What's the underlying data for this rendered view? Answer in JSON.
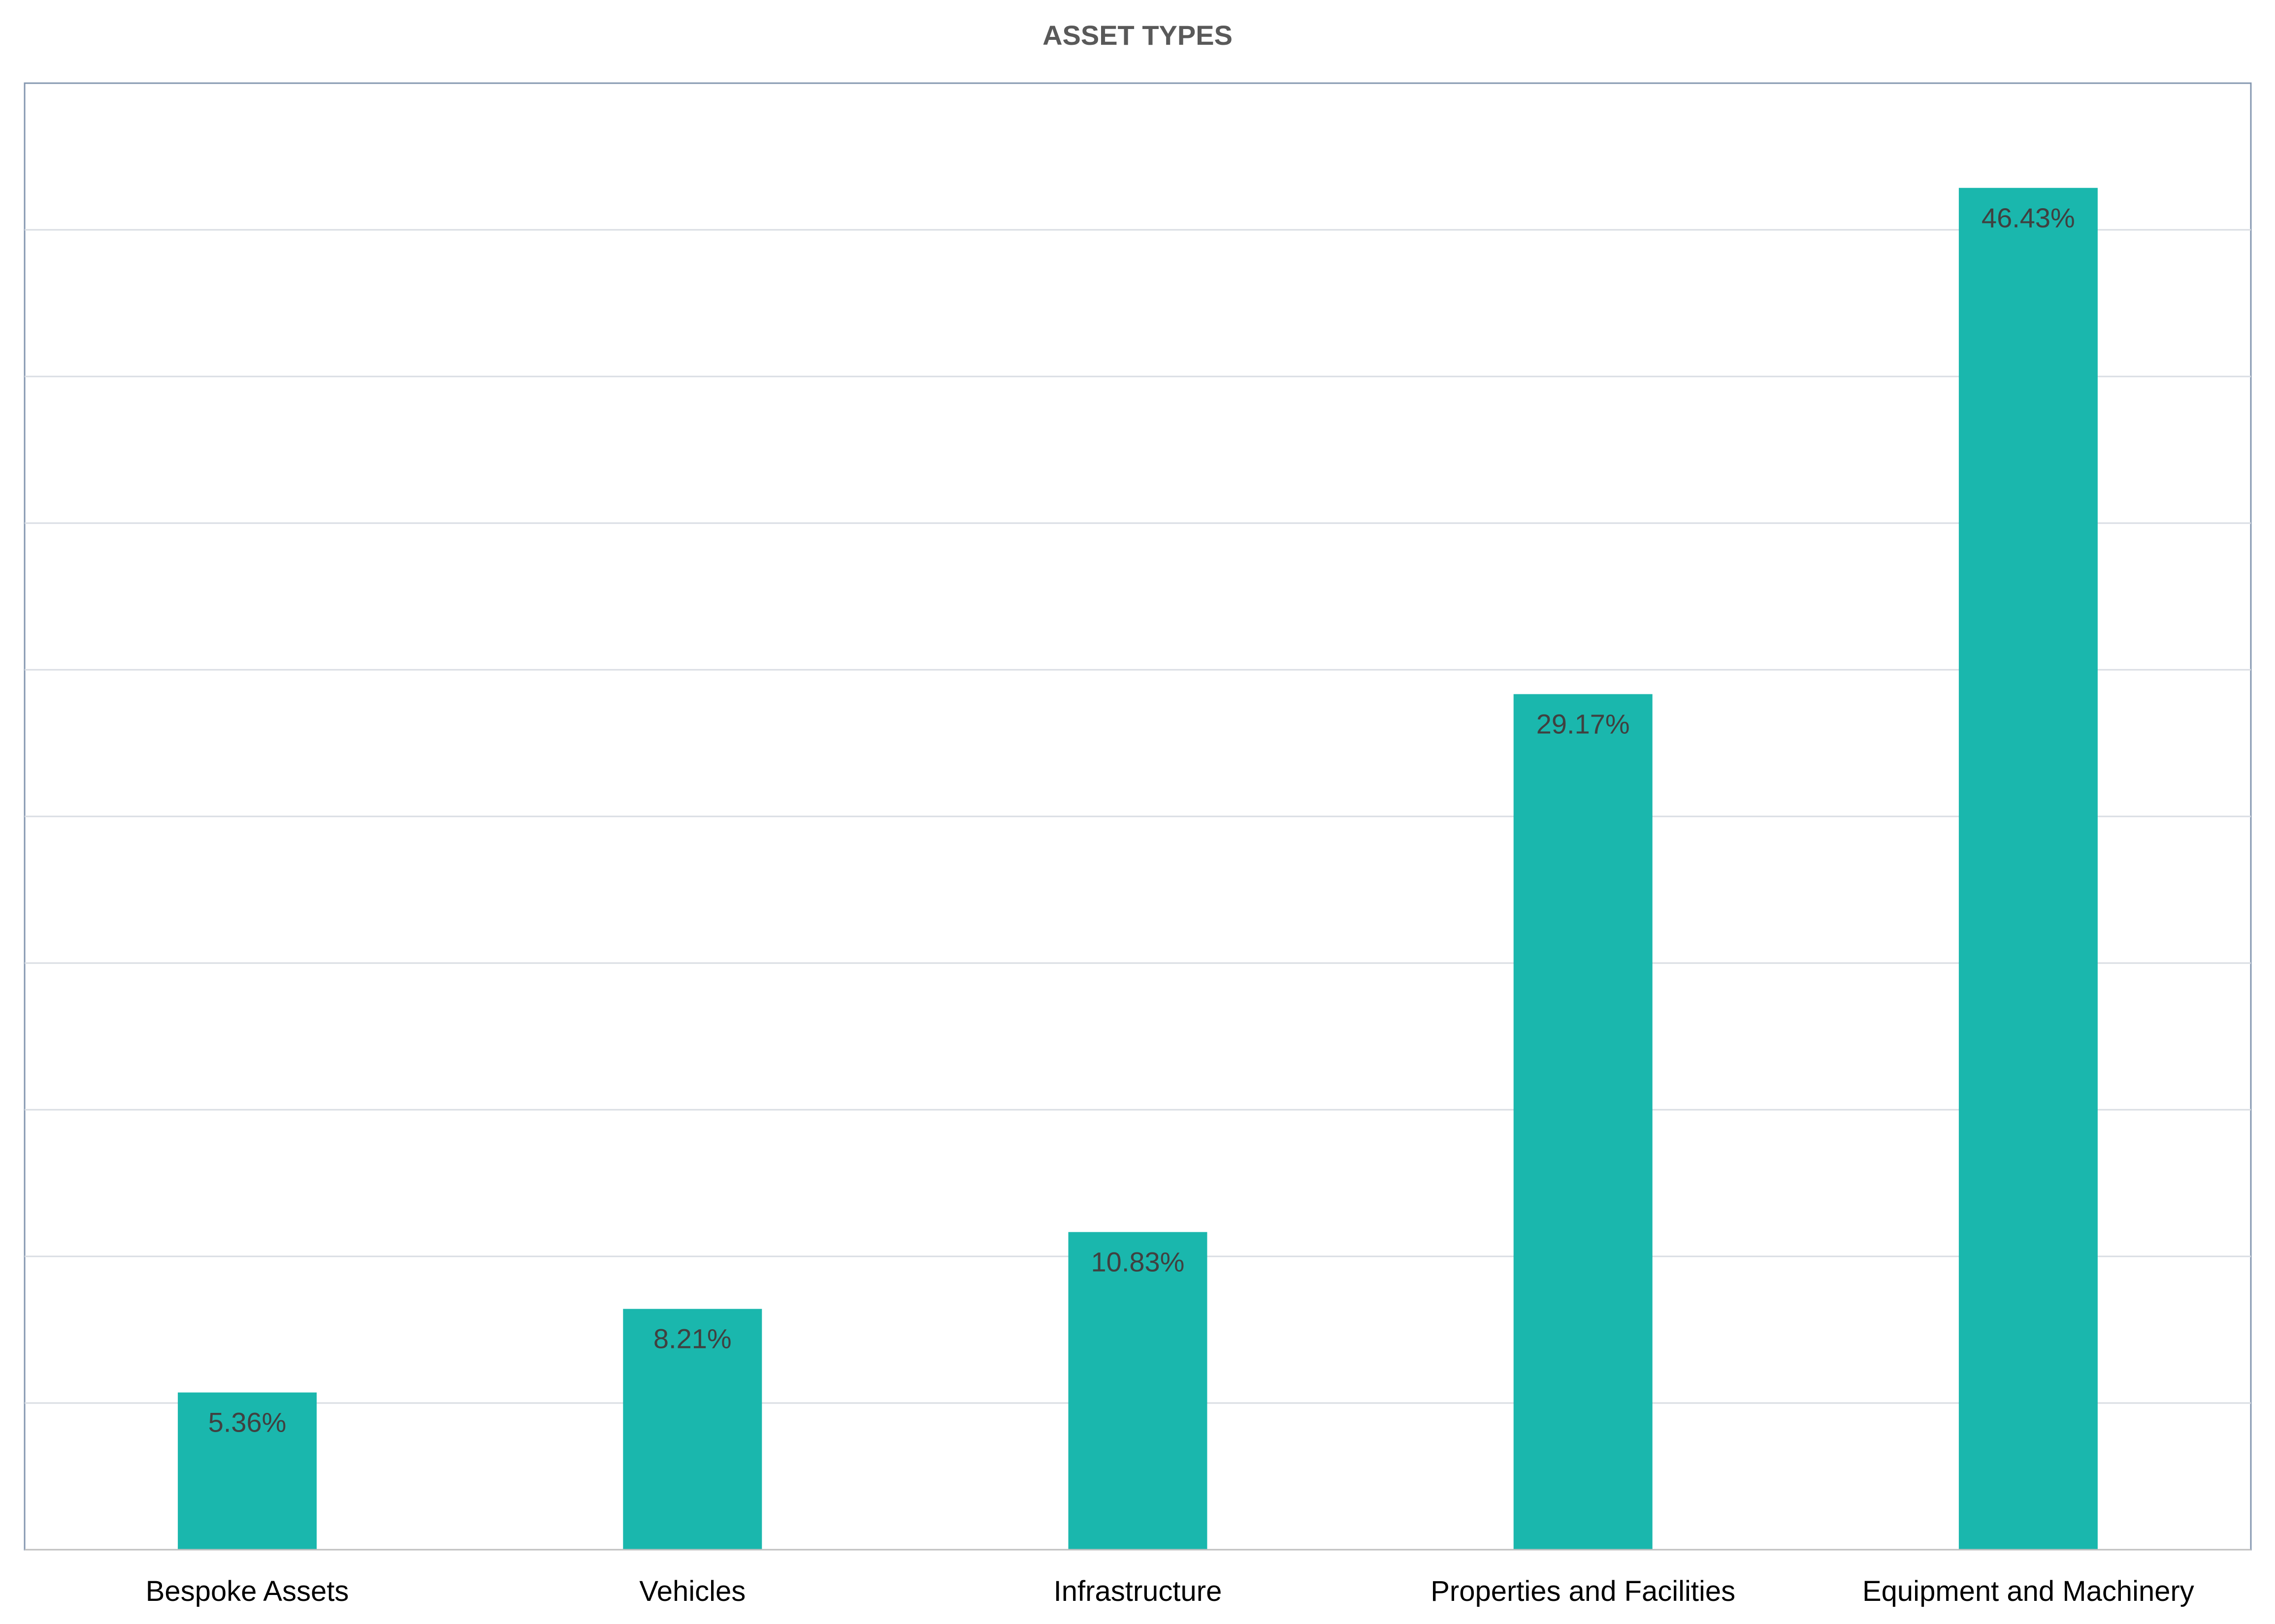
{
  "chart_data": {
    "type": "bar",
    "title": "ASSET TYPES",
    "xlabel": "",
    "ylabel": "",
    "categories": [
      "Bespoke Assets",
      "Vehicles",
      "Infrastructure",
      "Properties and Facilities",
      "Equipment and Machinery"
    ],
    "values": [
      5.36,
      8.21,
      10.83,
      29.17,
      46.43
    ],
    "data_labels": [
      "5.36%",
      "8.21%",
      "10.83%",
      "29.17%",
      "46.43%"
    ],
    "unit": "%",
    "ylim": [
      0,
      50
    ],
    "y_gridline_step": 5,
    "grid": true,
    "legend": "none",
    "colors": {
      "bar": "#1AB7AD",
      "gridline": "#D9DDE3",
      "plot_border": "#8497B0",
      "axis_line": "#BFBFBF"
    }
  }
}
